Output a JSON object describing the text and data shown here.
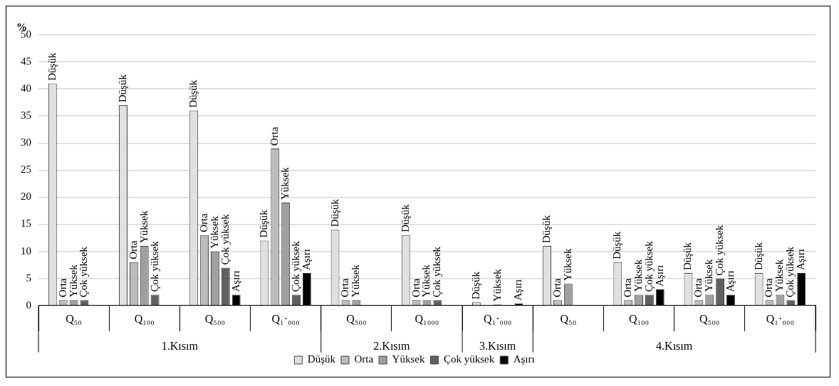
{
  "chart_data": {
    "type": "bar",
    "ylabel": "%",
    "categories": [
      "Q₅₀",
      "Q₁₀₀",
      "Q₅₀₀",
      "Q₁·₀₀₀",
      "Q₅₀₀",
      "Q₁₀₀₀",
      "Q₁·₀₀₀",
      "Q₅₀",
      "Q₁₀₀",
      "Q₅₀₀",
      "Q₁·₀₀₀"
    ],
    "annotations": [
      "1.Kısım",
      "2.Kısım",
      "3.Kısım",
      "4.Kısım"
    ],
    "ylim": [
      0,
      50
    ],
    "yticks": [
      0,
      5,
      10,
      15,
      20,
      25,
      30,
      35,
      40,
      45,
      50
    ],
    "grid": "y",
    "legend": "bottom",
    "series": [
      {
        "name": "Düşük",
        "color": "#e0e0e0",
        "values": [
          41,
          37,
          36,
          12,
          14,
          13,
          0.6,
          11,
          8,
          6,
          6
        ],
        "value_labels": [
          "Düşük",
          "Düşük",
          "Düşük",
          "Düşük",
          "Düşük",
          "Düşük",
          "Düşük",
          "Düşük",
          "Düşük",
          "Düşük",
          "Düşük"
        ]
      },
      {
        "name": "Orta",
        "color": "#bcbcbc",
        "values": [
          1,
          8,
          13,
          29,
          1,
          1,
          null,
          1,
          1,
          1,
          1
        ],
        "value_labels": [
          "Orta",
          "Orta",
          "Orta",
          "Orta",
          "Orta",
          "Orta",
          null,
          "Orta",
          "Orta",
          "Orta",
          "Orta"
        ]
      },
      {
        "name": "Yüksek",
        "color": "#a0a0a0",
        "values": [
          1,
          11,
          10,
          19,
          1,
          1,
          0.2,
          4,
          2,
          2,
          2
        ],
        "value_labels": [
          "Yüksek",
          "Yüksek",
          "Yüksek",
          "Yüksek",
          "Yüksek",
          "Yüksek",
          "Yüksek",
          "Yüksek",
          "Yüksek",
          "Yüksek",
          "Yüksek"
        ]
      },
      {
        "name": "Çok yüksek",
        "color": "#606060",
        "values": [
          1,
          2,
          7,
          2,
          null,
          1,
          null,
          null,
          2,
          5,
          1
        ],
        "value_labels": [
          "Çok yüksek",
          "Çok yüksek",
          "Çok yüksek",
          "Çok yüksek",
          null,
          "Çok yüksek",
          null,
          null,
          "Çok yüksek",
          "Çok yüksek",
          "Çok yüksek"
        ]
      },
      {
        "name": "Aşırı",
        "color": "#000000",
        "values": [
          null,
          null,
          2,
          6,
          null,
          null,
          0.4,
          null,
          3,
          2,
          6
        ],
        "value_labels": [
          null,
          null,
          "Aşırı",
          "Aşırı",
          null,
          null,
          "Aşırı",
          null,
          "Aşırı",
          "Aşırı",
          "Aşırı"
        ]
      }
    ]
  }
}
